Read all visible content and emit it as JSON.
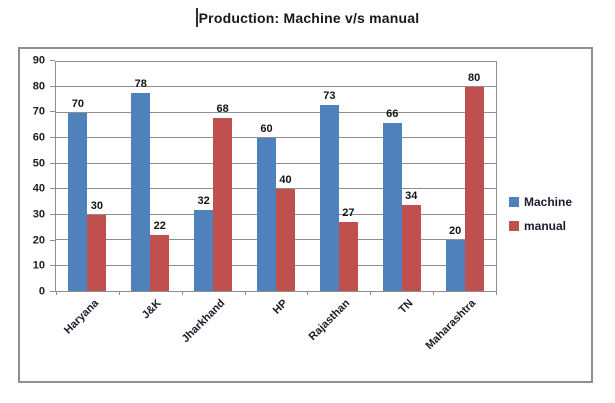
{
  "title": {
    "text": "Production: Machine v/s manual"
  },
  "chart_data": {
    "type": "bar",
    "title": "Production: Machine v/s manual",
    "categories": [
      "Haryana",
      "J&K",
      "Jharkhand",
      "HP",
      "Rajasthan",
      "TN",
      "Maharashtra"
    ],
    "series": [
      {
        "name": "Machine",
        "color": "#4F81BD",
        "values": [
          70,
          78,
          32,
          60,
          73,
          66,
          20
        ]
      },
      {
        "name": "manual",
        "color": "#C0504D",
        "values": [
          30,
          22,
          68,
          40,
          27,
          34,
          80
        ]
      }
    ],
    "xlabel": "",
    "ylabel": "",
    "ylim": [
      0,
      90
    ],
    "yticks": [
      0,
      10,
      20,
      30,
      40,
      50,
      60,
      70,
      80,
      90
    ],
    "grid": true,
    "data_labels": true,
    "legend_position": "right"
  },
  "colors": {
    "machine": "#4F81BD",
    "manual": "#C0504D",
    "gridline": "#8e8e8e",
    "frame_border": "#8f8f8f",
    "label_text": "#1c1c28"
  }
}
